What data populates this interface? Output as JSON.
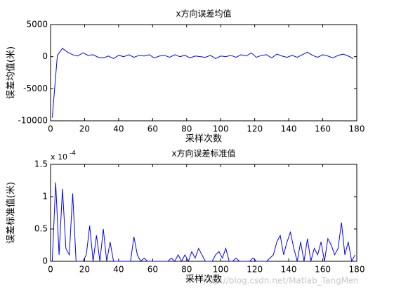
{
  "chart_data": [
    {
      "type": "line",
      "title": "x方向误差均值",
      "xlabel": "采样次数",
      "ylabel": "误差均值(米)",
      "xlim": [
        0,
        180
      ],
      "xticks": [
        0,
        20,
        40,
        60,
        80,
        100,
        120,
        140,
        160,
        180
      ],
      "ylim": [
        -10000,
        5000
      ],
      "yticks": [
        -10000,
        -5000,
        0,
        5000
      ],
      "x": [
        1,
        4,
        7,
        10,
        13,
        16,
        19,
        22,
        25,
        28,
        31,
        34,
        37,
        40,
        43,
        46,
        49,
        52,
        55,
        58,
        61,
        64,
        67,
        70,
        73,
        76,
        79,
        82,
        85,
        88,
        91,
        94,
        97,
        100,
        103,
        106,
        109,
        112,
        115,
        118,
        121,
        124,
        127,
        130,
        133,
        136,
        139,
        142,
        145,
        148,
        151,
        154,
        157,
        160,
        163,
        166,
        169,
        172,
        175,
        178
      ],
      "series": [
        {
          "color": "#0000ff",
          "values": [
            -9500,
            200,
            1300,
            700,
            300,
            100,
            600,
            200,
            300,
            -100,
            -200,
            100,
            -300,
            200,
            0,
            300,
            -100,
            200,
            100,
            300,
            -200,
            100,
            200,
            -100,
            300,
            0,
            200,
            -200,
            100,
            0,
            -100,
            200,
            -300,
            100,
            0,
            200,
            -100,
            300,
            100,
            600,
            -100,
            200,
            300,
            -200,
            400,
            100,
            -100,
            200,
            -100,
            300,
            700,
            200,
            -100,
            300,
            100,
            -200,
            200,
            400,
            100,
            -300
          ]
        }
      ]
    },
    {
      "type": "line",
      "title": "x方向误差标准值",
      "xlabel": "采样次数",
      "ylabel": "误差标准值(米)",
      "multiplier_base": "x 10",
      "multiplier_exp": "-4",
      "xlim": [
        0,
        180
      ],
      "xticks": [
        0,
        20,
        40,
        60,
        80,
        100,
        120,
        140,
        160,
        180
      ],
      "ylim": [
        0,
        1.5
      ],
      "yticks": [
        0,
        0.5,
        1,
        1.5
      ],
      "x": [
        1,
        3,
        5,
        7,
        9,
        11,
        13,
        15,
        17,
        19,
        21,
        23,
        25,
        27,
        29,
        31,
        33,
        35,
        37,
        39,
        41,
        43,
        45,
        47,
        49,
        51,
        53,
        55,
        57,
        59,
        61,
        63,
        65,
        67,
        69,
        71,
        73,
        75,
        77,
        79,
        81,
        83,
        85,
        87,
        89,
        91,
        93,
        95,
        97,
        99,
        101,
        103,
        105,
        107,
        109,
        111,
        113,
        115,
        117,
        119,
        121,
        123,
        125,
        127,
        129,
        131,
        133,
        135,
        137,
        139,
        141,
        143,
        145,
        147,
        149,
        151,
        153,
        155,
        157,
        159,
        161,
        163,
        165,
        167,
        169,
        171,
        173,
        175,
        177,
        179
      ],
      "series": [
        {
          "color": "#0000ff",
          "values": [
            0,
            1.22,
            0.1,
            1.12,
            0.2,
            0.1,
            1.05,
            0,
            0,
            0,
            0.1,
            0.55,
            0,
            0.4,
            0,
            0.5,
            0,
            0.3,
            0,
            0,
            0,
            0,
            0,
            0,
            0.38,
            0.1,
            0,
            0.05,
            0,
            0,
            0,
            0,
            0,
            0,
            0,
            0.05,
            0,
            0.1,
            0,
            0.1,
            0,
            0.15,
            0.05,
            0.2,
            0.1,
            0,
            0,
            0,
            0.1,
            0.15,
            0.05,
            0.2,
            0,
            0,
            0.05,
            0,
            0,
            0,
            0,
            0.05,
            0,
            0,
            0,
            0,
            0.05,
            0.1,
            0.3,
            0.4,
            0.1,
            0.3,
            0.45,
            0.2,
            0,
            0.3,
            0,
            0.35,
            0,
            0.2,
            0.1,
            0.3,
            0,
            0.35,
            0.25,
            0.1,
            0.2,
            0.6,
            0.1,
            0.3,
            0,
            0.1
          ]
        }
      ]
    }
  ],
  "watermark": "http://blog.csdn.net/Matlab_TangMen"
}
